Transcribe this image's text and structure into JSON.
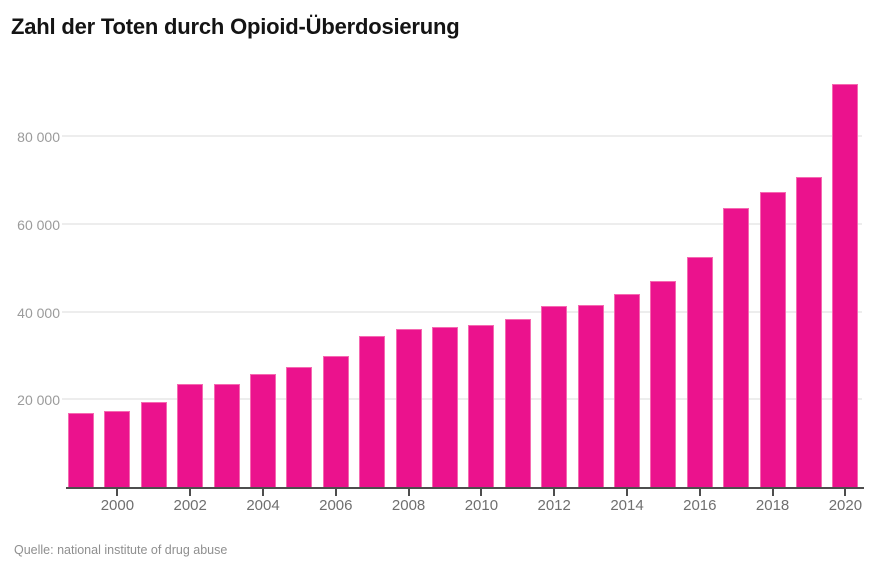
{
  "header": {
    "title": "Zahl der Toten durch Opioid-Überdosierung"
  },
  "footer": {
    "source": "Quelle: national institute of drug abuse"
  },
  "chart_data": {
    "type": "bar",
    "title": "Zahl der Toten durch Opioid-Überdosierung",
    "xlabel": "",
    "ylabel": "",
    "x": [
      1999,
      2000,
      2001,
      2002,
      2003,
      2004,
      2005,
      2006,
      2007,
      2008,
      2009,
      2010,
      2011,
      2012,
      2013,
      2014,
      2015,
      2016,
      2017,
      2018,
      2019,
      2020
    ],
    "values": [
      16849,
      17415,
      19394,
      23518,
      23518,
      25785,
      27424,
      29813,
      34425,
      36010,
      36450,
      37004,
      38329,
      41340,
      41502,
      43982,
      47055,
      52404,
      63632,
      67367,
      70630,
      91799
    ],
    "x_tick_labels": [
      "2000",
      "2002",
      "2004",
      "2006",
      "2008",
      "2010",
      "2012",
      "2014",
      "2016",
      "2018",
      "2020"
    ],
    "y_ticks": [
      {
        "value": 20000,
        "label": "20 000"
      },
      {
        "value": 40000,
        "label": "40 000"
      },
      {
        "value": 60000,
        "label": "60 000"
      },
      {
        "value": 80000,
        "label": "80 000"
      }
    ],
    "ylim": [
      0,
      92800
    ],
    "grid": true,
    "legend": false,
    "bar_color": "#eb128d",
    "bar_edge_color": "#f569b1",
    "gridline_color": "#ededed",
    "axis_color": "#4d4d4d",
    "source": "Quelle: national institute of drug abuse"
  }
}
